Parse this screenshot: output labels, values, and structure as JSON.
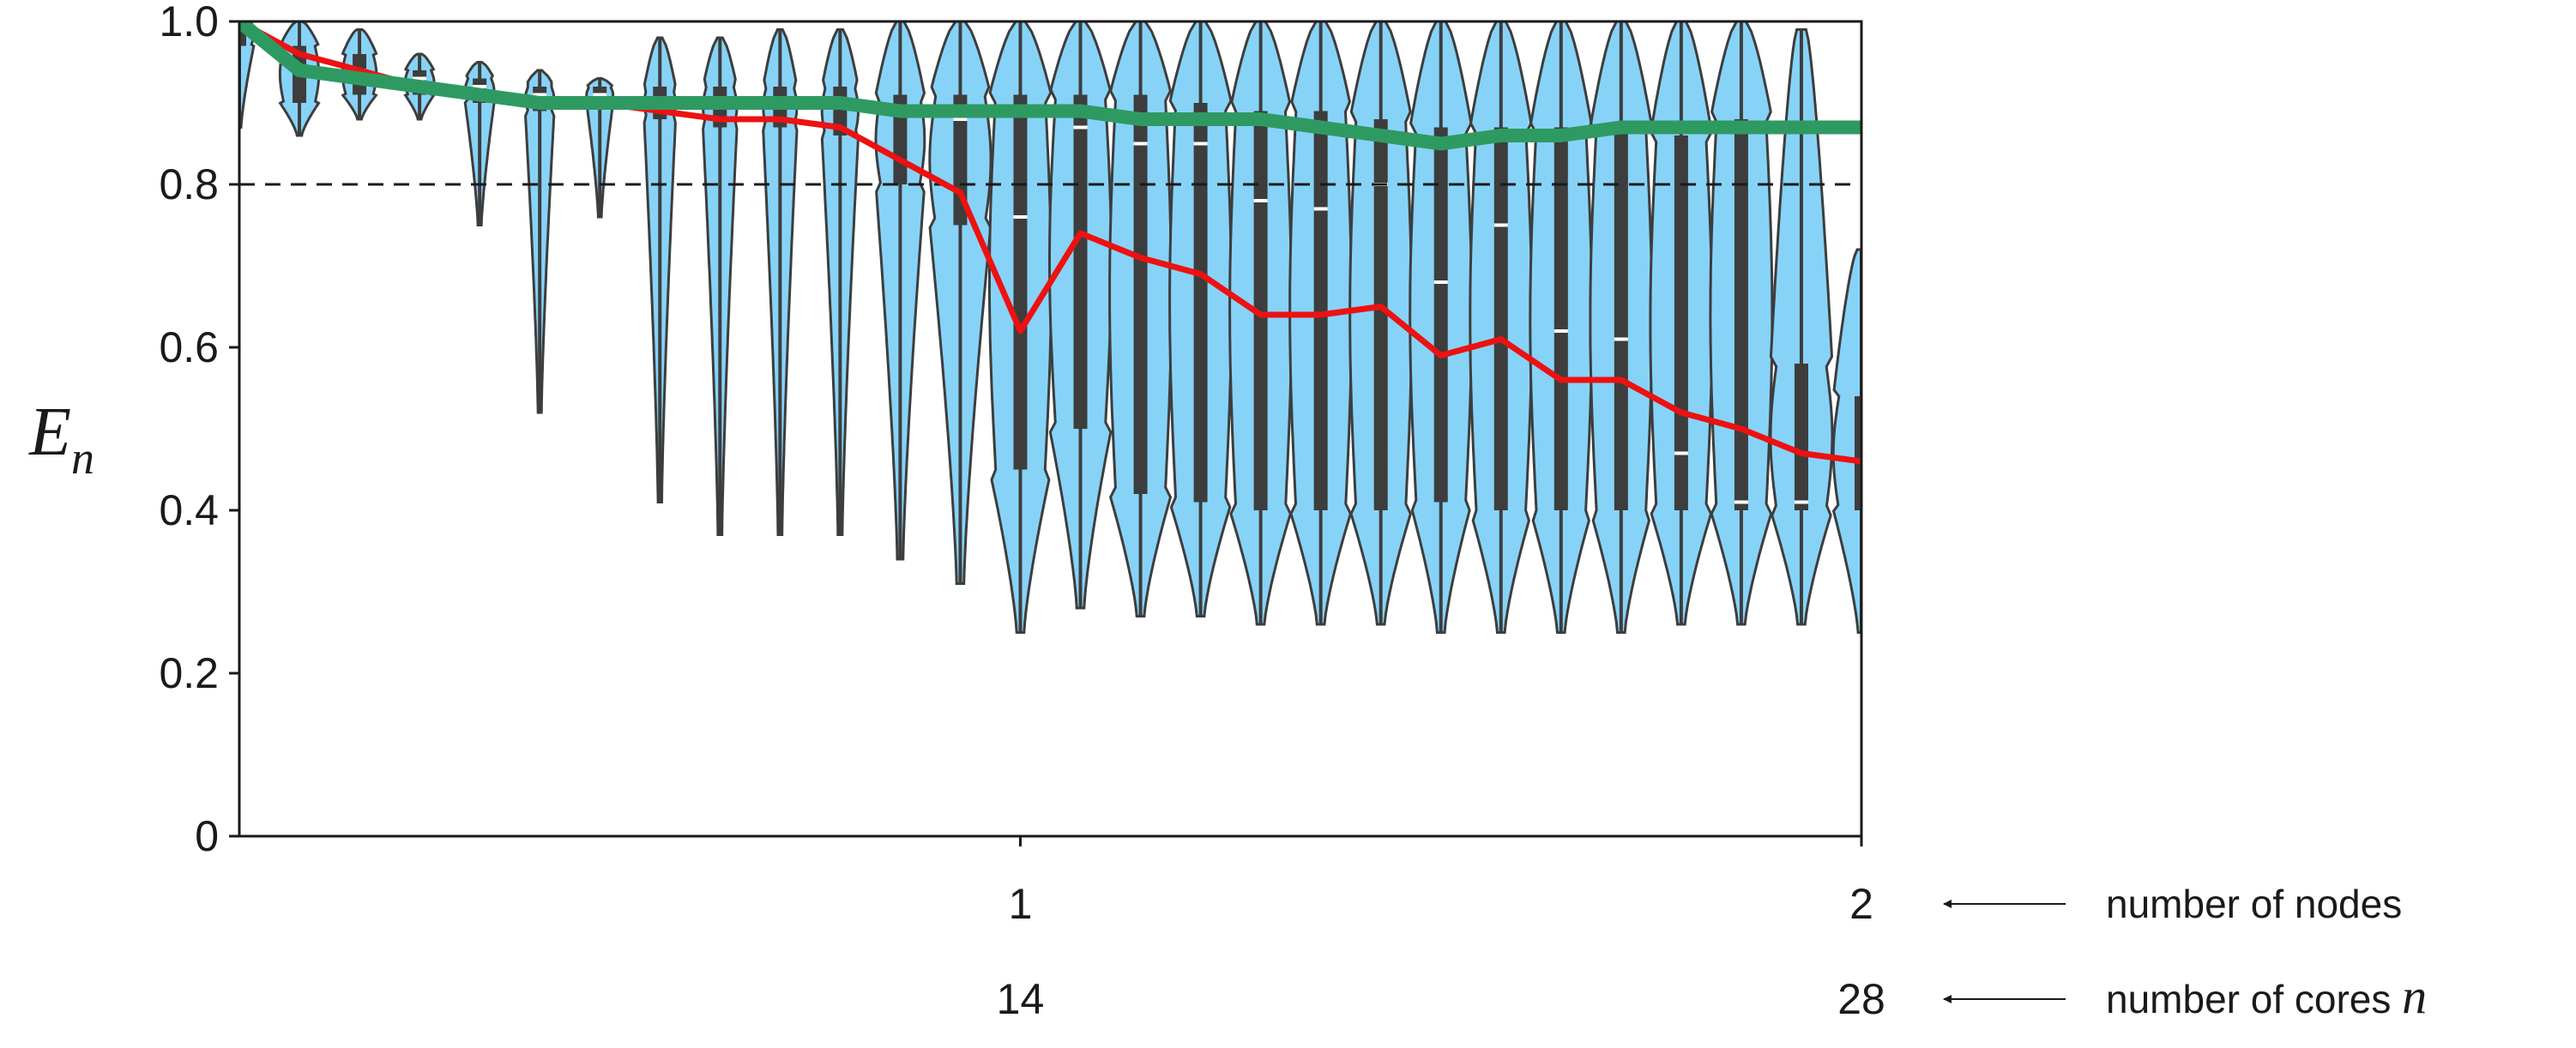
{
  "chart_data": {
    "type": "violin",
    "title": "",
    "ylabel": "E",
    "ylabel_subscript": "n",
    "ylim": [
      0,
      1.0
    ],
    "y_ticks": [
      "0",
      "0.2",
      "0.4",
      "0.6",
      "0.8",
      "1.0"
    ],
    "y_tick_values": [
      0,
      0.2,
      0.4,
      0.6,
      0.8,
      1.0
    ],
    "xlim": [
      1,
      28
    ],
    "x_tick_rows": [
      {
        "label": "number of nodes",
        "math": "",
        "ticks": [
          {
            "x": 14,
            "text": "1"
          },
          {
            "x": 28,
            "text": "2"
          }
        ]
      },
      {
        "label": "number of cores ",
        "math": "n",
        "ticks": [
          {
            "x": 14,
            "text": "14"
          },
          {
            "x": 28,
            "text": "28"
          }
        ]
      }
    ],
    "grid": false,
    "reference_line": {
      "y": 0.8,
      "style": "dashed"
    },
    "colors": {
      "violin_fill": "#87D3F8",
      "violin_edge": "#3d3d3d",
      "box": "#3d3d3d",
      "median": "#ffffff",
      "red_line": "#ee1111",
      "green_line": "#2e9a62"
    },
    "violins": [
      {
        "x": 1,
        "min": 0.87,
        "q1": 0.97,
        "median": 0.99,
        "q3": 1.0,
        "max": 1.0
      },
      {
        "x": 2,
        "min": 0.86,
        "q1": 0.9,
        "median": 0.94,
        "q3": 0.97,
        "max": 1.0
      },
      {
        "x": 3,
        "min": 0.88,
        "q1": 0.91,
        "median": 0.94,
        "q3": 0.96,
        "max": 0.99
      },
      {
        "x": 4,
        "min": 0.88,
        "q1": 0.91,
        "median": 0.93,
        "q3": 0.94,
        "max": 0.96
      },
      {
        "x": 5,
        "min": 0.75,
        "q1": 0.9,
        "median": 0.92,
        "q3": 0.93,
        "max": 0.95
      },
      {
        "x": 6,
        "min": 0.52,
        "q1": 0.89,
        "median": 0.91,
        "q3": 0.92,
        "max": 0.94
      },
      {
        "x": 7,
        "min": 0.76,
        "q1": 0.9,
        "median": 0.91,
        "q3": 0.92,
        "max": 0.93
      },
      {
        "x": 8,
        "min": 0.41,
        "q1": 0.88,
        "median": 0.9,
        "q3": 0.92,
        "max": 0.98
      },
      {
        "x": 9,
        "min": 0.37,
        "q1": 0.87,
        "median": 0.9,
        "q3": 0.92,
        "max": 0.98
      },
      {
        "x": 10,
        "min": 0.37,
        "q1": 0.87,
        "median": 0.9,
        "q3": 0.92,
        "max": 0.99
      },
      {
        "x": 11,
        "min": 0.37,
        "q1": 0.86,
        "median": 0.9,
        "q3": 0.92,
        "max": 0.99
      },
      {
        "x": 12,
        "min": 0.34,
        "q1": 0.8,
        "median": 0.89,
        "q3": 0.91,
        "max": 1.0
      },
      {
        "x": 13,
        "min": 0.31,
        "q1": 0.75,
        "median": 0.88,
        "q3": 0.91,
        "max": 1.0
      },
      {
        "x": 14,
        "min": 0.25,
        "q1": 0.45,
        "median": 0.76,
        "q3": 0.91,
        "max": 1.0
      },
      {
        "x": 15,
        "min": 0.28,
        "q1": 0.5,
        "median": 0.87,
        "q3": 0.91,
        "max": 1.0
      },
      {
        "x": 16,
        "min": 0.27,
        "q1": 0.42,
        "median": 0.85,
        "q3": 0.91,
        "max": 1.0
      },
      {
        "x": 17,
        "min": 0.27,
        "q1": 0.41,
        "median": 0.85,
        "q3": 0.9,
        "max": 1.0
      },
      {
        "x": 18,
        "min": 0.26,
        "q1": 0.4,
        "median": 0.78,
        "q3": 0.89,
        "max": 1.0
      },
      {
        "x": 19,
        "min": 0.26,
        "q1": 0.4,
        "median": 0.77,
        "q3": 0.89,
        "max": 1.0
      },
      {
        "x": 20,
        "min": 0.26,
        "q1": 0.4,
        "median": 0.8,
        "q3": 0.88,
        "max": 1.0
      },
      {
        "x": 21,
        "min": 0.25,
        "q1": 0.41,
        "median": 0.68,
        "q3": 0.87,
        "max": 1.0
      },
      {
        "x": 22,
        "min": 0.25,
        "q1": 0.4,
        "median": 0.75,
        "q3": 0.87,
        "max": 1.0
      },
      {
        "x": 23,
        "min": 0.25,
        "q1": 0.4,
        "median": 0.62,
        "q3": 0.87,
        "max": 1.0
      },
      {
        "x": 24,
        "min": 0.25,
        "q1": 0.4,
        "median": 0.61,
        "q3": 0.87,
        "max": 1.0
      },
      {
        "x": 25,
        "min": 0.26,
        "q1": 0.4,
        "median": 0.47,
        "q3": 0.86,
        "max": 1.0
      },
      {
        "x": 26,
        "min": 0.26,
        "q1": 0.4,
        "median": 0.41,
        "q3": 0.88,
        "max": 1.0
      },
      {
        "x": 27,
        "min": 0.26,
        "q1": 0.4,
        "median": 0.41,
        "q3": 0.58,
        "max": 0.99
      },
      {
        "x": 28,
        "min": 0.25,
        "q1": 0.4,
        "median": 0.46,
        "q3": 0.54,
        "max": 0.72
      }
    ],
    "series": [
      {
        "color": "red",
        "x": [
          1,
          2,
          3,
          4,
          5,
          6,
          7,
          8,
          9,
          10,
          11,
          12,
          13,
          14,
          15,
          16,
          17,
          18,
          19,
          20,
          21,
          22,
          23,
          24,
          25,
          26,
          27,
          28
        ],
        "values": [
          1.0,
          0.96,
          0.94,
          0.92,
          0.91,
          0.9,
          0.9,
          0.89,
          0.88,
          0.88,
          0.87,
          0.83,
          0.79,
          0.62,
          0.74,
          0.71,
          0.69,
          0.64,
          0.64,
          0.65,
          0.59,
          0.61,
          0.56,
          0.56,
          0.52,
          0.5,
          0.47,
          0.46
        ]
      },
      {
        "color": "green",
        "x": [
          1,
          2,
          3,
          4,
          5,
          6,
          7,
          8,
          9,
          10,
          11,
          12,
          13,
          14,
          15,
          16,
          17,
          18,
          19,
          20,
          21,
          22,
          23,
          24,
          25,
          26,
          27,
          28
        ],
        "values": [
          1.0,
          0.94,
          0.93,
          0.92,
          0.91,
          0.9,
          0.9,
          0.9,
          0.9,
          0.9,
          0.9,
          0.89,
          0.89,
          0.89,
          0.89,
          0.88,
          0.88,
          0.88,
          0.87,
          0.86,
          0.85,
          0.86,
          0.86,
          0.87,
          0.87,
          0.87,
          0.87,
          0.87
        ]
      }
    ]
  }
}
